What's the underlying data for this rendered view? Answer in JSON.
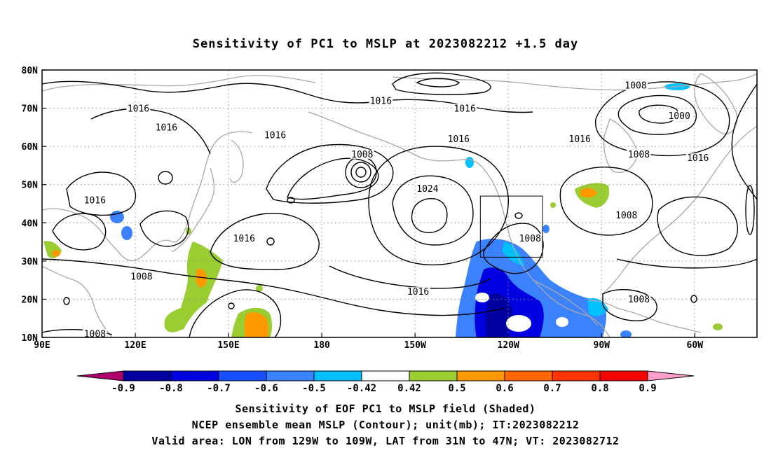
{
  "figure": {
    "title": "Sensitivity of PC1 to MSLP at 2023082212 +1.5 day",
    "caption_lines": [
      "Sensitivity of EOF PC1 to MSLP field (Shaded)",
      "NCEP ensemble mean MSLP (Contour); unit(mb); IT:2023082212",
      "Valid area: LON from 129W to 109W, LAT from 31N to 47N; VT: 2023082712"
    ]
  },
  "map": {
    "lon_labels": [
      {
        "text": "90E",
        "lon": 90
      },
      {
        "text": "120E",
        "lon": 120
      },
      {
        "text": "150E",
        "lon": 150
      },
      {
        "text": "180",
        "lon": 180
      },
      {
        "text": "150W",
        "lon": 210
      },
      {
        "text": "120W",
        "lon": 240
      },
      {
        "text": "90W",
        "lon": 270
      },
      {
        "text": "60W",
        "lon": 300
      }
    ],
    "lat_labels": [
      {
        "text": "80N",
        "lat": 80
      },
      {
        "text": "70N",
        "lat": 70
      },
      {
        "text": "60N",
        "lat": 60
      },
      {
        "text": "50N",
        "lat": 50
      },
      {
        "text": "40N",
        "lat": 40
      },
      {
        "text": "30N",
        "lat": 30
      },
      {
        "text": "20N",
        "lat": 20
      },
      {
        "text": "10N",
        "lat": 10
      }
    ],
    "extent": {
      "lon_min": 90,
      "lon_max": 320,
      "lat_min": 10,
      "lat_max": 80
    },
    "valid_area_box": {
      "lon_min": 231,
      "lon_max": 251,
      "lat_min": 31,
      "lat_max": 47
    },
    "contour_labels": [
      {
        "text": "1016",
        "lon": 121,
        "lat": 69.5
      },
      {
        "text": "1016",
        "lon": 130,
        "lat": 64.5
      },
      {
        "text": "1016",
        "lon": 165,
        "lat": 62.5
      },
      {
        "text": "1016",
        "lon": 199,
        "lat": 71.5
      },
      {
        "text": "1016",
        "lon": 226,
        "lat": 69.5
      },
      {
        "text": "1016",
        "lon": 224,
        "lat": 61.5
      },
      {
        "text": "1008",
        "lon": 193,
        "lat": 57.5
      },
      {
        "text": "1024",
        "lon": 214,
        "lat": 48.5
      },
      {
        "text": "1016",
        "lon": 107,
        "lat": 45.5
      },
      {
        "text": "1016",
        "lon": 155,
        "lat": 35.5
      },
      {
        "text": "1008",
        "lon": 122,
        "lat": 25.5
      },
      {
        "text": "1016",
        "lon": 211,
        "lat": 21.5
      },
      {
        "text": "1008",
        "lon": 107,
        "lat": 10.5
      },
      {
        "text": "1008",
        "lon": 247,
        "lat": 35.5
      },
      {
        "text": "1008",
        "lon": 281,
        "lat": 75.5
      },
      {
        "text": "1000",
        "lon": 295,
        "lat": 67.5
      },
      {
        "text": "1016",
        "lon": 263,
        "lat": 61.5
      },
      {
        "text": "1008",
        "lon": 282,
        "lat": 57.5
      },
      {
        "text": "1016",
        "lon": 301,
        "lat": 56.5
      },
      {
        "text": "1008",
        "lon": 278,
        "lat": 41.5
      },
      {
        "text": "1008",
        "lon": 282,
        "lat": 19.5
      }
    ]
  },
  "colorbar": {
    "labels": [
      "-0.9",
      "-0.8",
      "-0.7",
      "-0.6",
      "-0.5",
      "-0.42",
      "0.42",
      "0.5",
      "0.6",
      "0.7",
      "0.8",
      "0.9"
    ],
    "colors": [
      "#b0006e",
      "#0000a0",
      "#0000e0",
      "#1850ff",
      "#3a82ff",
      "#00c0ff",
      "#ffffff",
      "#9acd32",
      "#ff9900",
      "#ff6600",
      "#ff3300",
      "#ff0000",
      "#ff9ec8"
    ]
  }
}
